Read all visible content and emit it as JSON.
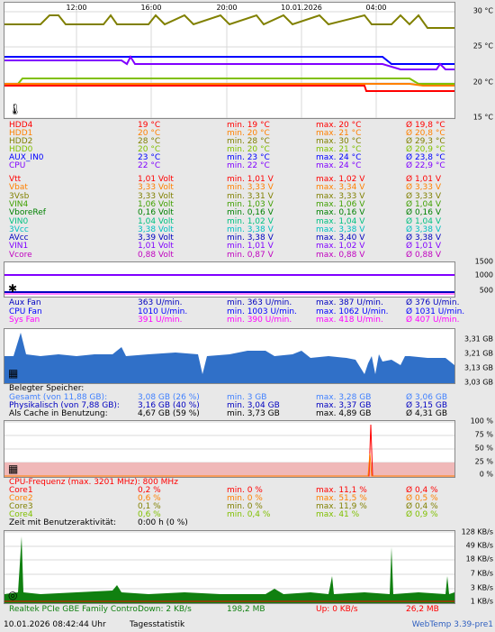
{
  "temp_chart": {
    "time_labels": [
      "12:00",
      "16:00",
      "20:00",
      "10.01.2026",
      "04:00"
    ],
    "y_labels": [
      "30 °C",
      "25 °C",
      "20 °C",
      "15 °C"
    ]
  },
  "temps": [
    {
      "name": "HDD4",
      "cur": "19 °C",
      "min": "min. 19 °C",
      "max": "max. 20 °C",
      "avg": "Ø 19,8 °C",
      "color": "#ff0000"
    },
    {
      "name": "HDD1",
      "cur": "20 °C",
      "min": "min. 20 °C",
      "max": "max. 21 °C",
      "avg": "Ø 20,8 °C",
      "color": "#ff8000"
    },
    {
      "name": "HDD2",
      "cur": "28 °C",
      "min": "min. 28 °C",
      "max": "max. 30 °C",
      "avg": "Ø 29,3 °C",
      "color": "#808000"
    },
    {
      "name": "HDD0",
      "cur": "20 °C",
      "min": "min. 20 °C",
      "max": "max. 21 °C",
      "avg": "Ø 20,9 °C",
      "color": "#80c000"
    },
    {
      "name": "AUX_IN0",
      "cur": "23 °C",
      "min": "min. 23 °C",
      "max": "max. 24 °C",
      "avg": "Ø 23,8 °C",
      "color": "#0000ff"
    },
    {
      "name": "CPU",
      "cur": "22 °C",
      "min": "min. 22 °C",
      "max": "max. 24 °C",
      "avg": "Ø 22,9 °C",
      "color": "#8000ff"
    }
  ],
  "volts": [
    {
      "name": "Vtt",
      "cur": "1,01 Volt",
      "min": "min. 1,01 V",
      "max": "max. 1,02 V",
      "avg": "Ø 1,01 V",
      "color": "#ff0000"
    },
    {
      "name": "Vbat",
      "cur": "3,33 Volt",
      "min": "min. 3,33 V",
      "max": "max. 3,34 V",
      "avg": "Ø 3,33 V",
      "color": "#ff8000"
    },
    {
      "name": "3Vsb",
      "cur": "3,33 Volt",
      "min": "min. 3,31 V",
      "max": "max. 3,33 V",
      "avg": "Ø 3,33 V",
      "color": "#808000"
    },
    {
      "name": "VIN4",
      "cur": "1,06 Volt",
      "min": "min. 1,03 V",
      "max": "max. 1,06 V",
      "avg": "Ø 1,04 V",
      "color": "#40a000"
    },
    {
      "name": "VboreRef",
      "cur": "0,16 Volt",
      "min": "min. 0,16 V",
      "max": "max. 0,16 V",
      "avg": "Ø 0,16 V",
      "color": "#008000"
    },
    {
      "name": "VIN0",
      "cur": "1,04 Volt",
      "min": "min. 1,02 V",
      "max": "max. 1,04 V",
      "avg": "Ø 1,04 V",
      "color": "#00c080"
    },
    {
      "name": "3Vcc",
      "cur": "3,38 Volt",
      "min": "min. 3,38 V",
      "max": "max. 3,38 V",
      "avg": "Ø 3,38 V",
      "color": "#00c0c0"
    },
    {
      "name": "AVcc",
      "cur": "3,39 Volt",
      "min": "min. 3,38 V",
      "max": "max. 3,40 V",
      "avg": "Ø 3,38 V",
      "color": "#0000c0"
    },
    {
      "name": "VIN1",
      "cur": "1,01 Volt",
      "min": "min. 1,01 V",
      "max": "max. 1,02 V",
      "avg": "Ø 1,01 V",
      "color": "#8000ff"
    },
    {
      "name": "Vcore",
      "cur": "0,88 Volt",
      "min": "min. 0,87 V",
      "max": "max. 0,88 V",
      "avg": "Ø 0,88 V",
      "color": "#c000c0"
    }
  ],
  "fan_chart": {
    "y_labels": [
      "1500",
      "1000",
      "500"
    ]
  },
  "fans": [
    {
      "name": "Aux Fan",
      "cur": "363 U/min.",
      "min": "min. 363 U/min.",
      "max": "max. 387 U/min.",
      "avg": "Ø 376 U/min.",
      "color": "#0000c0"
    },
    {
      "name": "CPU Fan",
      "cur": "1010 U/min.",
      "min": "min. 1003 U/min.",
      "max": "max. 1062 U/min.",
      "avg": "Ø 1031 U/min.",
      "color": "#0000ff"
    },
    {
      "name": "Sys Fan",
      "cur": "391 U/min.",
      "min": "min. 390 U/min.",
      "max": "max. 418 U/min.",
      "avg": "Ø 407 U/min.",
      "color": "#ff00ff"
    }
  ],
  "mem_chart": {
    "y_labels": [
      "3,31 GB",
      "3,21 GB",
      "3,13 GB",
      "3,03 GB"
    ]
  },
  "mem_title": "Belegter Speicher:",
  "mem": [
    {
      "name": "Gesamt (von 11,88 GB):",
      "cur": "3,08 GB (26 %)",
      "min": "min. 3 GB",
      "max": "max. 3,28 GB",
      "avg": "Ø 3,06 GB",
      "color": "#4080ff"
    },
    {
      "name": "Physikalisch (von 7,88 GB):",
      "cur": "3,16 GB (40 %)",
      "min": "min. 3,04 GB",
      "max": "max. 3,37 GB",
      "avg": "Ø 3,15 GB",
      "color": "#0000c0"
    },
    {
      "name": "Als Cache in Benutzung:",
      "cur": "4,67 GB (59 %)",
      "min": "min. 3,73 GB",
      "max": "max. 4,89 GB",
      "avg": "Ø 4,31 GB",
      "color": "#000000"
    }
  ],
  "cpu_chart": {
    "y_labels": [
      "100 %",
      "75 %",
      "50 %",
      "25 %",
      "0 %"
    ]
  },
  "cpu_title": "CPU-Frequenz (max. 3201 MHz): 800 MHz",
  "cores": [
    {
      "name": "Core1",
      "cur": "0,2 %",
      "min": "min. 0 %",
      "max": "max. 11,1 %",
      "avg": "Ø 0,4 %",
      "color": "#ff0000"
    },
    {
      "name": "Core2",
      "cur": "0,6 %",
      "min": "min. 0 %",
      "max": "max. 51,5 %",
      "avg": "Ø 0,5 %",
      "color": "#ff8000"
    },
    {
      "name": "Core3",
      "cur": "0,1 %",
      "min": "min. 0 %",
      "max": "max. 11,9 %",
      "avg": "Ø 0,4 %",
      "color": "#808000"
    },
    {
      "name": "Core4",
      "cur": "0,6 %",
      "min": "min. 0,4 %",
      "max": "max. 41 %",
      "avg": "Ø 0,9 %",
      "color": "#80c000"
    }
  ],
  "user_activity": "Zeit mit Benutzeraktivität:",
  "user_activity_value": "0:00 h (0 %)",
  "net_chart": {
    "y_labels": [
      "128 KB/s",
      "49 KB/s",
      "18 KB/s",
      "7 KB/s",
      "3 KB/s",
      "1 KB/s"
    ]
  },
  "net": {
    "name": "Realtek PCIe GBE Family Contro",
    "down": "Down: 2 KB/s",
    "down_total": "198,2 MB",
    "up": "Up: 0 KB/s",
    "up_total": "26,2 MB"
  },
  "footer": {
    "datetime": "10.01.2026 08:42:44 Uhr",
    "link": "Tagesstatistik",
    "version": "WebTemp 3.39-pre1"
  }
}
